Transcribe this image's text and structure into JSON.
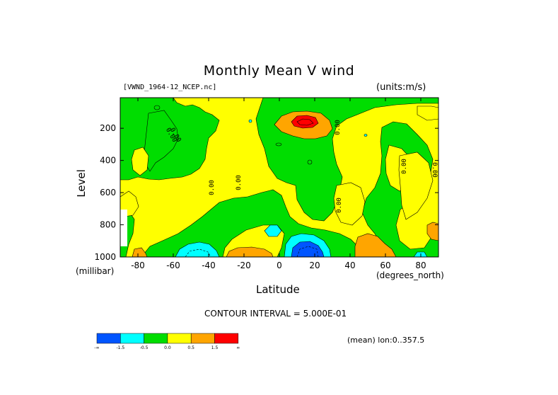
{
  "chart_data": {
    "type": "heatmap",
    "title": "Monthly Mean V wind",
    "file_label": "[VWND_1964-12_NCEP.nc]",
    "units_label": "(units:m/s)",
    "ylabel": "Level",
    "ylabel_unit": "(millibar)",
    "xlabel": "Latitude",
    "xlabel_unit": "(degrees_north)",
    "x_ticks": [
      "-80",
      "-60",
      "-40",
      "-20",
      "0",
      "20",
      "40",
      "60",
      "80"
    ],
    "x_tick_values": [
      -80,
      -60,
      -40,
      -20,
      0,
      20,
      40,
      60,
      80
    ],
    "xlim": [
      -90,
      90
    ],
    "y_ticks": [
      "200",
      "400",
      "600",
      "800",
      "1000"
    ],
    "y_tick_values": [
      200,
      400,
      600,
      800,
      1000
    ],
    "ylim": [
      1000,
      10
    ],
    "contour_interval_label": "CONTOUR INTERVAL = 5.000E-01",
    "mean_label": "(mean) lon:0..357.5",
    "contour_labels": [
      "0.00",
      "0.00",
      "0.00",
      "0.00",
      "0.00",
      "0.00",
      "0.00",
      "0.00"
    ],
    "levels": [
      {
        "name": "lt -1.5",
        "color": "#0055ff"
      },
      {
        "name": "-1.5 to -0.5",
        "color": "#00ffff"
      },
      {
        "name": "-0.5 to 0.0",
        "color": "#00dd00"
      },
      {
        "name": "0.0 to 0.5",
        "color": "#ffff00"
      },
      {
        "name": "0.5 to 1.5",
        "color": "#ffa500"
      },
      {
        "name": "gt 1.5",
        "color": "#ff0000"
      }
    ],
    "colorbar_labels": [
      "-∞",
      "-1.5",
      "-0.5",
      "0.0",
      "0.5",
      "1.5",
      "∞"
    ]
  }
}
